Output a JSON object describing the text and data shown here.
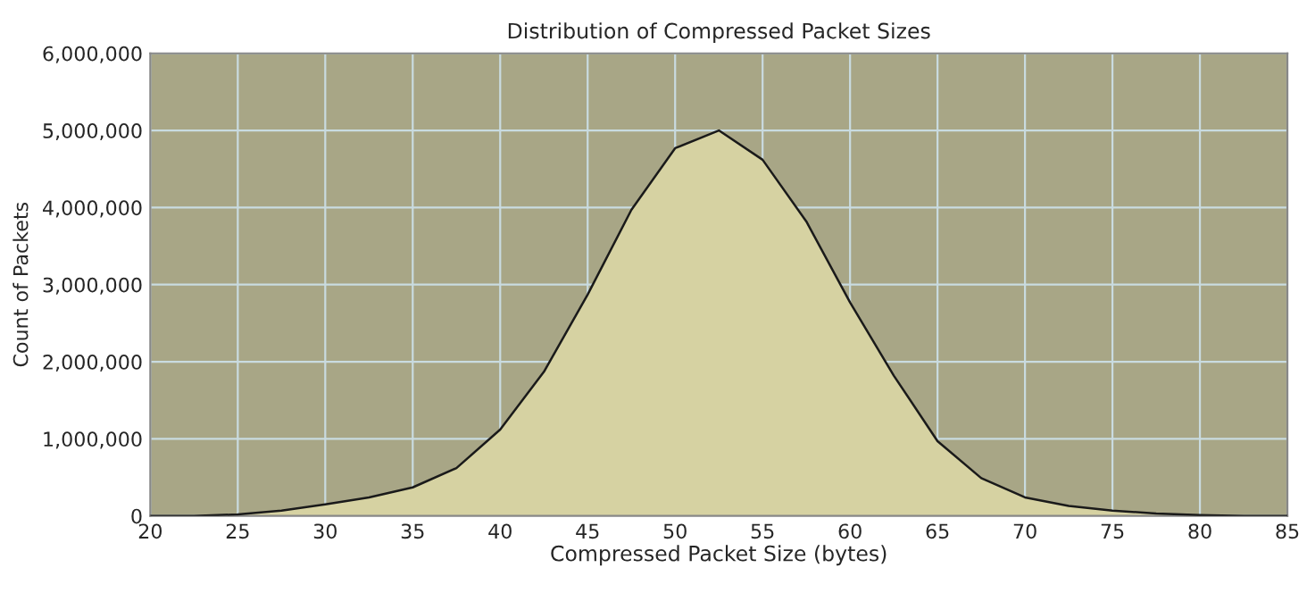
{
  "chart_data": {
    "type": "area",
    "title": "Distribution of Compressed Packet Sizes",
    "xlabel": "Compressed Packet Size (bytes)",
    "ylabel": "Count of Packets",
    "x": [
      20,
      22.5,
      25,
      27.5,
      30,
      32.5,
      35,
      37.5,
      40,
      42.5,
      45,
      47.5,
      50,
      52.5,
      55,
      57.5,
      60,
      62.5,
      65,
      67.5,
      70,
      72.5,
      75,
      77.5,
      80,
      82.5,
      85
    ],
    "series": [
      {
        "color": "#d6d2a2",
        "values": [
          0,
          0,
          20000,
          70000,
          150000,
          240000,
          370000,
          620000,
          1120000,
          1870000,
          2870000,
          3970000,
          4770000,
          5000000,
          4620000,
          3820000,
          2770000,
          1820000,
          970000,
          490000,
          240000,
          130000,
          70000,
          30000,
          10000,
          0,
          0
        ]
      }
    ],
    "xlim": [
      20,
      85
    ],
    "xticks": [
      20,
      25,
      30,
      35,
      40,
      45,
      50,
      55,
      60,
      65,
      70,
      75,
      80,
      85
    ],
    "ylim": [
      0,
      6000000
    ],
    "yticks": [
      {
        "value": 0,
        "label": "0"
      },
      {
        "value": 1000000,
        "label": "1,000,000"
      },
      {
        "value": 2000000,
        "label": "2,000,000"
      },
      {
        "value": 3000000,
        "label": "3,000,000"
      },
      {
        "value": 4000000,
        "label": "4,000,000"
      },
      {
        "value": 5000000,
        "label": "5,000,000"
      },
      {
        "value": 6000000,
        "label": "6,000,000"
      }
    ],
    "grid": true
  }
}
